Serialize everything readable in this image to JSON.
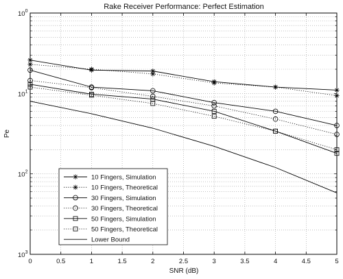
{
  "chart_data": {
    "type": "line",
    "title": "Rake Receiver Performance: Perfect Estimation",
    "xlabel": "SNR (dB)",
    "ylabel": "Pe",
    "yscale": "log",
    "xlim": [
      0,
      5
    ],
    "ylim": [
      0.001,
      1
    ],
    "x_ticks": [
      0,
      0.5,
      1,
      1.5,
      2,
      2.5,
      3,
      3.5,
      4,
      4.5,
      5
    ],
    "x_tick_labels": [
      "0",
      "0.5",
      "1",
      "1.5",
      "2",
      "2.5",
      "3",
      "3.5",
      "4",
      "4.5",
      "5"
    ],
    "y_ticks": [
      {
        "value": 1,
        "base": "10",
        "exp": "0"
      },
      {
        "value": 0.1,
        "base": "10",
        "exp": "1"
      },
      {
        "value": 0.01,
        "base": "10",
        "exp": "2"
      },
      {
        "value": 0.001,
        "base": "10",
        "exp": "3"
      }
    ],
    "grid": true,
    "legend_position": "bottom-left",
    "series": [
      {
        "name": "10 Fingers, Simulation",
        "marker": "star",
        "line": "solid",
        "x": [
          0,
          1,
          2,
          3,
          4,
          5
        ],
        "y": [
          0.26,
          0.195,
          0.19,
          0.14,
          0.12,
          0.11
        ]
      },
      {
        "name": "10 Fingers, Theoretical",
        "marker": "star",
        "line": "dotted",
        "x": [
          0,
          1,
          2,
          3,
          4,
          5
        ],
        "y": [
          0.23,
          0.2,
          0.175,
          0.135,
          0.12,
          0.094
        ]
      },
      {
        "name": "30 Fingers, Simulation",
        "marker": "circle",
        "line": "solid",
        "x": [
          0,
          1,
          2,
          3,
          4,
          5
        ],
        "y": [
          0.195,
          0.12,
          0.108,
          0.077,
          0.06,
          0.04
        ]
      },
      {
        "name": "30 Fingers, Theoretical",
        "marker": "circle",
        "line": "dotted",
        "x": [
          0,
          1,
          2,
          3,
          4,
          5
        ],
        "y": [
          0.145,
          0.118,
          0.092,
          0.07,
          0.048,
          0.031
        ]
      },
      {
        "name": "50 Fingers, Simulation",
        "marker": "square",
        "line": "solid",
        "x": [
          0,
          1,
          2,
          3,
          4,
          5
        ],
        "y": [
          0.13,
          0.098,
          0.085,
          0.06,
          0.034,
          0.018
        ]
      },
      {
        "name": "50 Fingers, Theoretical",
        "marker": "square",
        "line": "dotted",
        "x": [
          0,
          1,
          2,
          3,
          4,
          5
        ],
        "y": [
          0.12,
          0.095,
          0.075,
          0.052,
          0.034,
          0.02
        ]
      },
      {
        "name": "Lower Bound",
        "marker": "none",
        "line": "solid",
        "x": [
          0,
          1,
          2,
          3,
          4,
          5
        ],
        "y": [
          0.08,
          0.056,
          0.037,
          0.022,
          0.012,
          0.0058
        ]
      }
    ]
  }
}
